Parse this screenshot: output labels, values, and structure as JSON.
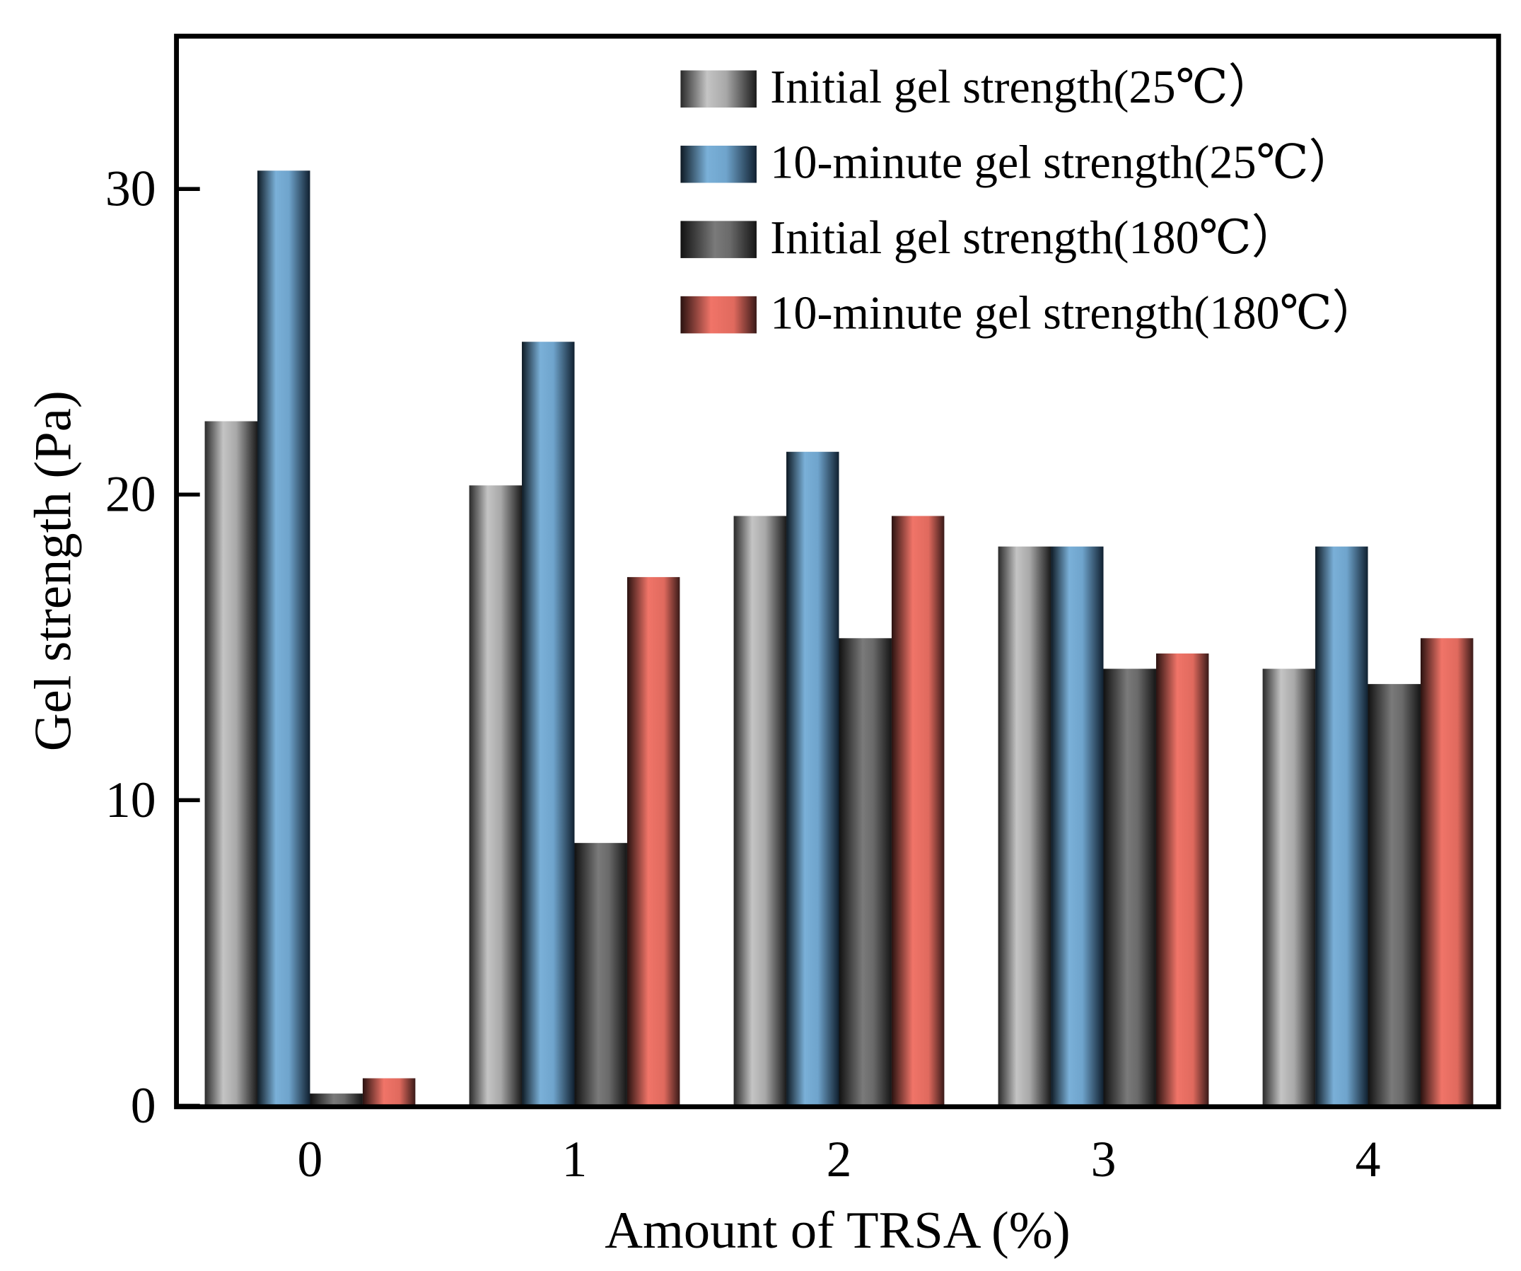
{
  "chart_data": {
    "type": "bar",
    "title": "",
    "xlabel": "Amount of TRSA (%)",
    "ylabel": "Gel strength (Pa)",
    "categories": [
      "0",
      "1",
      "2",
      "3",
      "4"
    ],
    "ylim": [
      0,
      35
    ],
    "yticks": [
      0,
      10,
      20,
      30
    ],
    "grid": false,
    "legend_position": "top-right",
    "series": [
      {
        "name": "Initial gel strength(25℃）",
        "color": "#c0c0c0",
        "values": [
          22.4,
          20.3,
          19.3,
          18.3,
          14.3
        ]
      },
      {
        "name": "10-minute gel strength(25℃）",
        "color": "#7ab0d8",
        "values": [
          30.6,
          25.0,
          21.4,
          18.3,
          18.3
        ]
      },
      {
        "name": "Initial gel strength(180℃）",
        "color": "#7a7a7a",
        "values": [
          0.4,
          8.6,
          15.3,
          14.3,
          13.8
        ]
      },
      {
        "name": "10-minute gel strength(180℃）",
        "color": "#f07468",
        "values": [
          0.9,
          17.3,
          19.3,
          14.8,
          15.3
        ]
      }
    ]
  }
}
